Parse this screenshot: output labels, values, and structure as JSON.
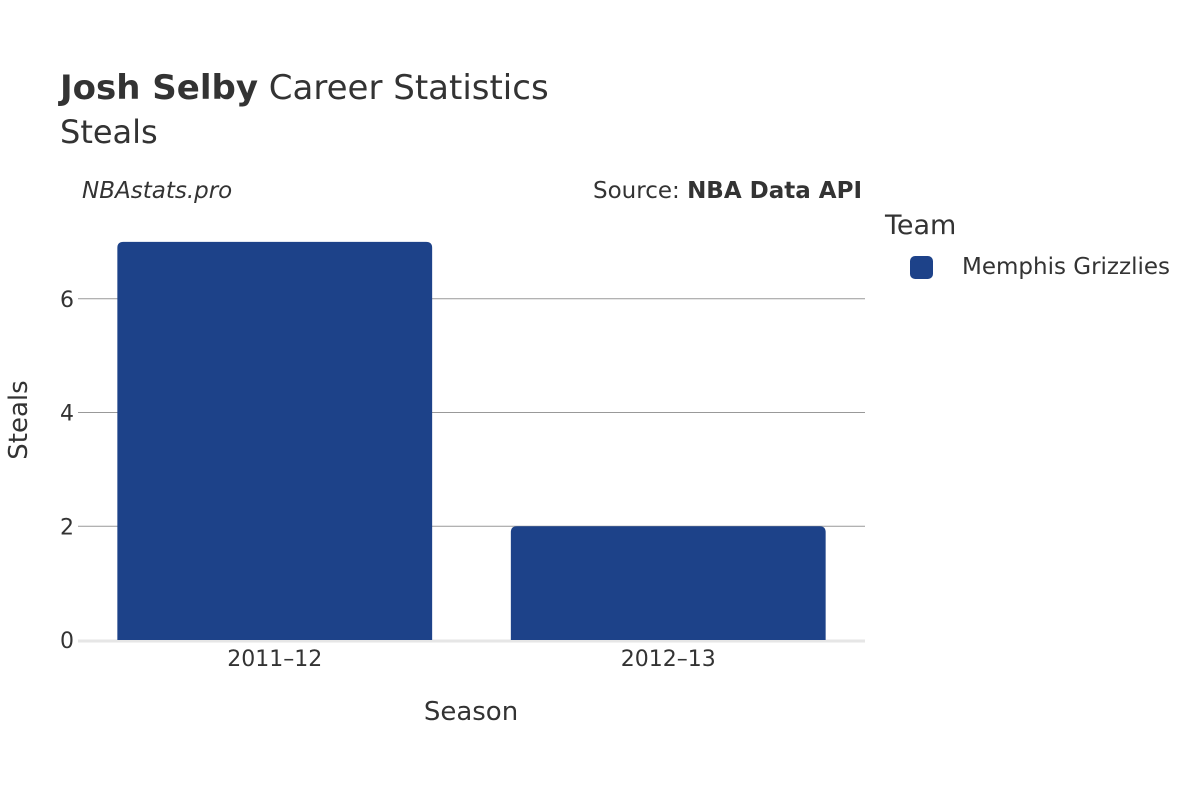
{
  "header": {
    "player": "Josh Selby",
    "title_rest": " Career Statistics",
    "subtitle": "Steals"
  },
  "watermark": "NBAstats.pro",
  "source": {
    "prefix": "Source: ",
    "name": "NBA Data API"
  },
  "legend": {
    "title": "Team",
    "items": [
      {
        "label": "Memphis Grizzlies",
        "color": "#1d4289"
      }
    ]
  },
  "colors": {
    "bar": "#1d4289",
    "grid": "#999999",
    "text": "#333333"
  },
  "chart_data": {
    "type": "bar",
    "categories": [
      "2011–12",
      "2012–13"
    ],
    "series": [
      {
        "name": "Memphis Grizzlies",
        "values": [
          7,
          2
        ]
      }
    ],
    "xlabel": "Season",
    "ylabel": "Steals",
    "yticks": [
      0,
      2,
      4,
      6
    ],
    "ylim": [
      0,
      7.35
    ],
    "grid": true
  }
}
